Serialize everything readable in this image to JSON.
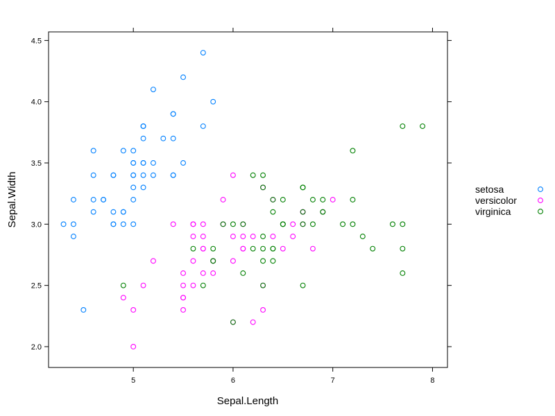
{
  "chart_data": {
    "type": "scatter",
    "title": "",
    "xlabel": "Sepal.Length",
    "ylabel": "Sepal.Width",
    "xlim": [
      4.15,
      8.15
    ],
    "ylim": [
      1.83,
      4.57
    ],
    "x_ticks": [
      5,
      6,
      7,
      8
    ],
    "y_ticks": [
      2.0,
      2.5,
      3.0,
      3.5,
      4.0,
      4.5
    ],
    "x_tick_labels": [
      "5",
      "6",
      "7",
      "8"
    ],
    "y_tick_labels": [
      "2.0",
      "2.5",
      "3.0",
      "3.5",
      "4.0",
      "4.5"
    ],
    "grid": false,
    "legend_position": "right",
    "series": [
      {
        "name": "setosa",
        "color": "#0080ff",
        "x": [
          5.1,
          4.9,
          4.7,
          4.6,
          5.0,
          5.4,
          4.6,
          5.0,
          4.4,
          4.9,
          5.4,
          4.8,
          4.8,
          4.3,
          5.8,
          5.7,
          5.4,
          5.1,
          5.7,
          5.1,
          5.4,
          5.1,
          4.6,
          5.1,
          4.8,
          5.0,
          5.0,
          5.2,
          5.2,
          4.7,
          4.8,
          5.4,
          5.2,
          5.5,
          4.9,
          5.0,
          5.5,
          4.9,
          4.4,
          5.1,
          5.0,
          4.5,
          4.4,
          5.0,
          5.1,
          4.8,
          5.1,
          4.6,
          5.3,
          5.0
        ],
        "y": [
          3.5,
          3.0,
          3.2,
          3.1,
          3.6,
          3.9,
          3.4,
          3.4,
          2.9,
          3.1,
          3.7,
          3.4,
          3.0,
          3.0,
          4.0,
          4.4,
          3.9,
          3.5,
          3.8,
          3.8,
          3.4,
          3.7,
          3.6,
          3.3,
          3.4,
          3.0,
          3.4,
          3.5,
          3.4,
          3.2,
          3.1,
          3.4,
          4.1,
          4.2,
          3.1,
          3.2,
          3.5,
          3.6,
          3.0,
          3.4,
          3.5,
          2.3,
          3.2,
          3.5,
          3.8,
          3.0,
          3.8,
          3.2,
          3.7,
          3.3
        ]
      },
      {
        "name": "versicolor",
        "color": "#ff00ff",
        "x": [
          7.0,
          6.4,
          6.9,
          5.5,
          6.5,
          5.7,
          6.3,
          4.9,
          6.6,
          5.2,
          5.0,
          5.9,
          6.0,
          6.1,
          5.6,
          6.7,
          5.6,
          5.8,
          6.2,
          5.6,
          5.9,
          6.1,
          6.3,
          6.1,
          6.4,
          6.6,
          6.8,
          6.7,
          6.0,
          5.7,
          5.5,
          5.5,
          5.8,
          6.0,
          5.4,
          6.0,
          6.7,
          6.3,
          5.6,
          5.5,
          5.5,
          6.1,
          5.8,
          5.0,
          5.6,
          5.7,
          5.7,
          6.2,
          5.1,
          5.7
        ],
        "y": [
          3.2,
          3.2,
          3.1,
          2.3,
          2.8,
          2.8,
          3.3,
          2.4,
          2.9,
          2.7,
          2.0,
          3.0,
          2.2,
          2.9,
          2.9,
          3.1,
          3.0,
          2.7,
          2.2,
          2.5,
          3.2,
          2.8,
          2.5,
          2.8,
          2.9,
          3.0,
          2.8,
          3.0,
          2.9,
          2.6,
          2.4,
          2.4,
          2.7,
          2.7,
          3.0,
          3.4,
          3.1,
          2.3,
          3.0,
          2.5,
          2.6,
          3.0,
          2.6,
          2.3,
          2.7,
          3.0,
          2.9,
          2.9,
          2.5,
          2.8
        ]
      },
      {
        "name": "virginica",
        "color": "#008000",
        "x": [
          6.3,
          5.8,
          7.1,
          6.3,
          6.5,
          7.6,
          4.9,
          7.3,
          6.7,
          7.2,
          6.5,
          6.4,
          6.8,
          5.7,
          5.8,
          6.4,
          6.5,
          7.7,
          7.7,
          6.0,
          6.9,
          5.6,
          7.7,
          6.3,
          6.7,
          7.2,
          6.2,
          6.1,
          6.4,
          7.2,
          7.4,
          7.9,
          6.4,
          6.3,
          6.1,
          7.7,
          6.3,
          6.4,
          6.0,
          6.9,
          6.7,
          6.9,
          5.8,
          6.8,
          6.7,
          6.7,
          6.3,
          6.5,
          6.2,
          5.9
        ],
        "y": [
          3.3,
          2.7,
          3.0,
          2.9,
          3.0,
          3.0,
          2.5,
          2.9,
          2.5,
          3.6,
          3.2,
          2.7,
          3.0,
          2.5,
          2.8,
          3.2,
          3.0,
          3.8,
          2.6,
          2.2,
          3.2,
          2.8,
          2.8,
          2.7,
          3.3,
          3.2,
          2.8,
          3.0,
          2.8,
          3.0,
          2.8,
          3.8,
          2.8,
          2.8,
          2.6,
          3.0,
          3.4,
          3.1,
          3.0,
          3.1,
          3.1,
          3.1,
          2.7,
          3.2,
          3.3,
          3.0,
          2.5,
          3.0,
          3.4,
          3.0
        ]
      }
    ]
  }
}
